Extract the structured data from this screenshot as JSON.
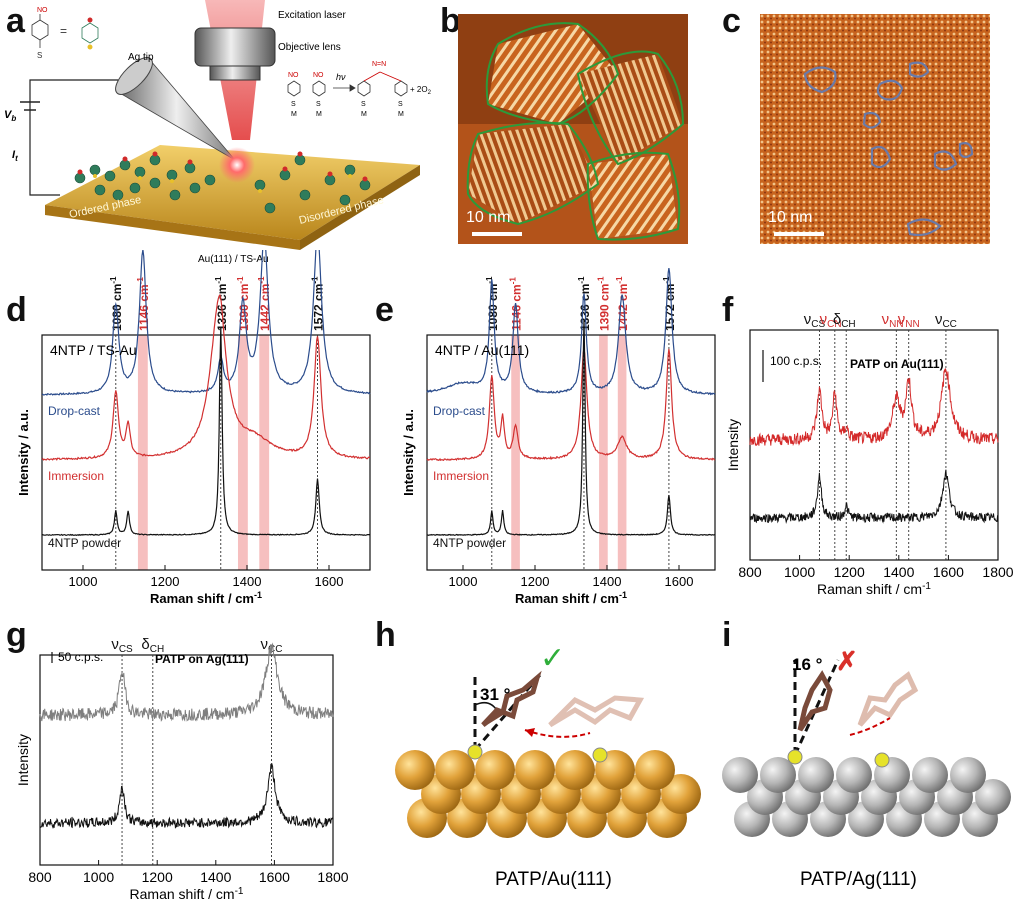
{
  "labels": {
    "a": "a",
    "b": "b",
    "c": "c",
    "d": "d",
    "e": "e",
    "f": "f",
    "g": "g",
    "h": "h",
    "i": "i"
  },
  "panel_a": {
    "laser": "Excitation laser",
    "objective": "Objective lens",
    "tip": "Ag tip",
    "vb": "V",
    "vb_sub": "b",
    "it": "I",
    "it_sub": "t",
    "ordered": "Ordered phase",
    "disordered": "Disordered phase",
    "substrate": "Au(111) / TS-Au",
    "hv": "hν",
    "o2": "+ 2O",
    "o2_sub": "2",
    "no2": "NO",
    "no2_sub": "2",
    "s": "S",
    "m": "M",
    "n_n": "N=N",
    "eq": "="
  },
  "panel_b": {
    "scale": "10 nm"
  },
  "panel_c": {
    "scale": "10 nm"
  },
  "panel_d": {
    "title": "4NTP / TS-Au",
    "peaks": [
      {
        "v": "1080",
        "x": 1080,
        "red": false
      },
      {
        "v": "1146",
        "x": 1146,
        "red": true
      },
      {
        "v": "1336",
        "x": 1336,
        "red": false
      },
      {
        "v": "1390",
        "x": 1390,
        "red": true
      },
      {
        "v": "1442",
        "x": 1442,
        "red": true
      },
      {
        "v": "1572",
        "x": 1572,
        "red": false
      }
    ],
    "unit": "cm",
    "unit_sup": "-1",
    "traces": [
      {
        "name": "Drop-cast",
        "color": "#2b4c8c"
      },
      {
        "name": "Immersion",
        "color": "#d23030"
      },
      {
        "name": "4NTP powder",
        "color": "#111111"
      }
    ],
    "ylabel": "Intensity / a.u.",
    "xlabel": "Raman shift / cm",
    "xlabel_sup": "-1",
    "xticks": [
      "1000",
      "1200",
      "1400",
      "1600"
    ]
  },
  "panel_e": {
    "title": "4NTP / Au(111)",
    "peaks": [
      {
        "v": "1080",
        "x": 1080,
        "red": false
      },
      {
        "v": "1146",
        "x": 1146,
        "red": true
      },
      {
        "v": "1336",
        "x": 1336,
        "red": false
      },
      {
        "v": "1390",
        "x": 1390,
        "red": true
      },
      {
        "v": "1442",
        "x": 1442,
        "red": true
      },
      {
        "v": "1572",
        "x": 1572,
        "red": false
      }
    ],
    "unit": "cm",
    "unit_sup": "-1",
    "traces": [
      {
        "name": "Drop-cast",
        "color": "#2b4c8c"
      },
      {
        "name": "Immersion",
        "color": "#d23030"
      },
      {
        "name": "4NTP powder",
        "color": "#111111"
      }
    ],
    "ylabel": "Intensity / a.u.",
    "xlabel": "Raman shift / cm",
    "xlabel_sup": "-1",
    "xticks": [
      "1000",
      "1200",
      "1400",
      "1600"
    ]
  },
  "panel_f": {
    "modes": [
      {
        "sym": "ν",
        "sub": "CS",
        "red": false
      },
      {
        "sym": "ν",
        "sub": "CN",
        "red": true
      },
      {
        "sym": "δ",
        "sub": "CH",
        "red": false
      },
      {
        "sym": "ν",
        "sub": "NN",
        "red": true
      },
      {
        "sym": "ν",
        "sub": "NN",
        "red": true
      },
      {
        "sym": "ν",
        "sub": "CC",
        "red": false
      }
    ],
    "scale": "100 c.p.s.",
    "title": "PATP on Au(111)",
    "ylabel": "Intensity",
    "xlabel": "Raman shift / cm",
    "xlabel_sup": "-1",
    "xticks": [
      "800",
      "1000",
      "1200",
      "1400",
      "1600",
      "1800"
    ]
  },
  "panel_g": {
    "modes": [
      {
        "sym": "ν",
        "sub": "CS"
      },
      {
        "sym": "δ",
        "sub": "CH"
      },
      {
        "sym": "ν",
        "sub": "CC"
      }
    ],
    "scale": "50 c.p.s.",
    "title": "PATP on Ag(111)",
    "ylabel": "Intensity",
    "xlabel": "Raman shift / cm",
    "xlabel_sup": "-1",
    "xticks": [
      "800",
      "1000",
      "1200",
      "1400",
      "1600",
      "1800"
    ]
  },
  "panel_h": {
    "angle": "31 °",
    "caption": "PATP/Au(111)",
    "mark": "✓"
  },
  "panel_i": {
    "angle": "16 °",
    "caption": "PATP/Ag(111)",
    "mark": "✗"
  },
  "colors": {
    "gold": "#d99a2b",
    "silver": "#a8a8a8",
    "highlight": "#f3a9a9",
    "stm": "#c8641e"
  }
}
